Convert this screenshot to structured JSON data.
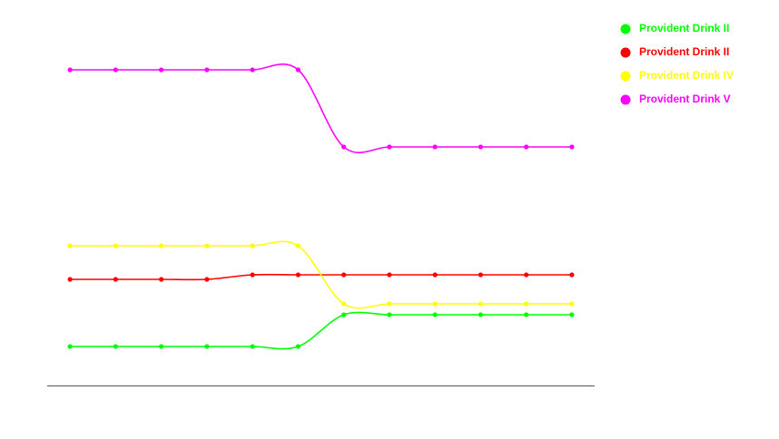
{
  "chart_data": {
    "type": "line",
    "categories": [
      null,
      null,
      null,
      null,
      null,
      null,
      null,
      null,
      null,
      null,
      null,
      null
    ],
    "series": [
      {
        "name": "Provident Drink II",
        "color": "#00ff00",
        "values": [
          43,
          43,
          43,
          43,
          43,
          43,
          78,
          78,
          78,
          78,
          78,
          78
        ]
      },
      {
        "name": "Provident Drink II",
        "color": "#ff0000",
        "values": [
          117,
          117,
          117,
          117,
          122,
          122,
          122,
          122,
          122,
          122,
          122,
          122
        ]
      },
      {
        "name": "Provident Drink IV",
        "color": "#ffff00",
        "values": [
          154,
          154,
          154,
          154,
          154,
          154,
          90,
          90,
          90,
          90,
          90,
          90
        ]
      },
      {
        "name": "Provident Drink V",
        "color": "#ff00ff",
        "values": [
          348,
          348,
          348,
          348,
          348,
          348,
          263,
          263,
          263,
          263,
          263,
          263
        ]
      }
    ],
    "ylim": [
      0,
      400
    ],
    "legend": "top-right"
  }
}
